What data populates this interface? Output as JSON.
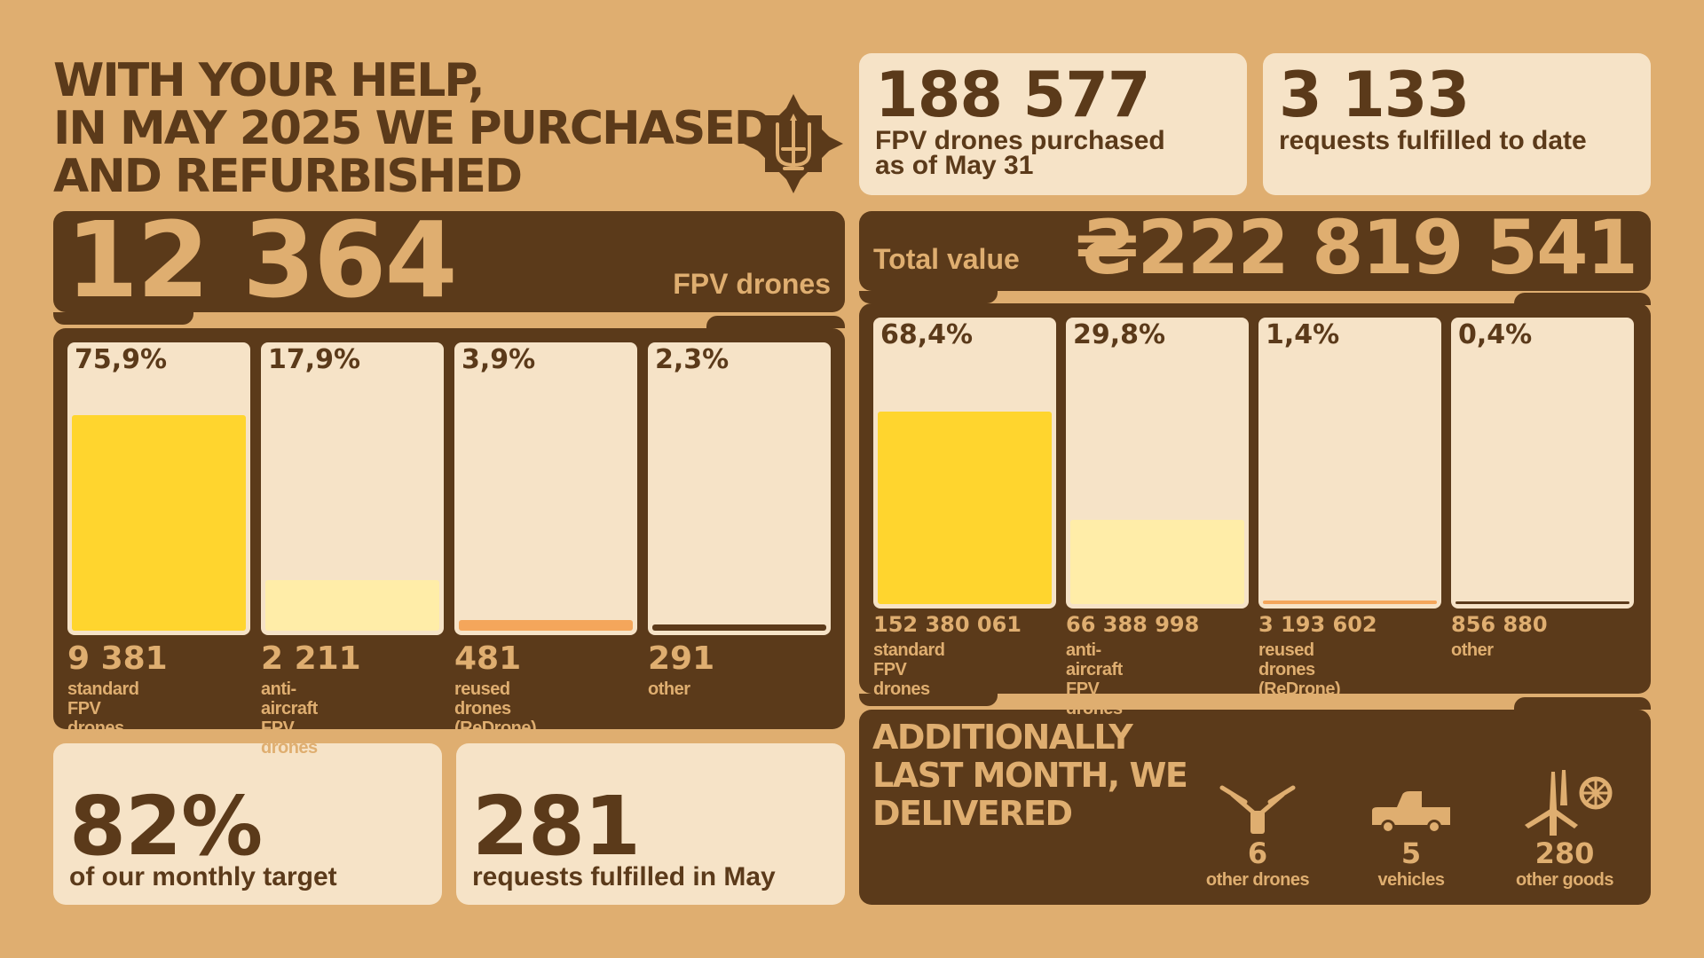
{
  "headline": {
    "line1": "WITH YOUR HELP,",
    "line2": "IN MAY 2025 WE PURCHASED",
    "line3": "AND REFURBISHED"
  },
  "emblem_icon": "tryzub-star-emblem",
  "top_stats": [
    {
      "number": "188 577",
      "label_line1": "FPV drones purchased",
      "label_line2": "as of May 31"
    },
    {
      "number": "3 133",
      "label_line1": "requests fulfilled to date"
    }
  ],
  "drones_banner": {
    "number": "12 364",
    "label": "FPV drones"
  },
  "value_banner": {
    "label": "Total value",
    "number": "₴222 819 541"
  },
  "chart_data": [
    {
      "type": "bar",
      "categories": [
        "standard\nFPV drones",
        "anti-aircraft\nFPV drones",
        "reused drones\n(ReDrone)",
        "other"
      ],
      "percent_labels": [
        "75,9%",
        "17,9%",
        "3,9%",
        "2,3%"
      ],
      "percent_values": [
        75.9,
        17.9,
        3.9,
        2.3
      ],
      "value_labels": [
        "9 381",
        "2 211",
        "481",
        "291"
      ],
      "values": [
        9381,
        2211,
        481,
        291
      ],
      "fill_colors": [
        "#FFD52E",
        "#FFEDA8",
        "#F4A65B",
        "#5B3A1A"
      ],
      "ylim": [
        0,
        100
      ]
    },
    {
      "type": "bar",
      "categories": [
        "standard\nFPV drones",
        "anti-aircraft\nFPV drones",
        "reused drones\n(ReDrone)",
        "other"
      ],
      "percent_labels": [
        "68,4%",
        "29,8%",
        "1,4%",
        "0,4%"
      ],
      "percent_values": [
        68.4,
        29.8,
        1.4,
        0.4
      ],
      "value_labels": [
        "152 380 061",
        "66 388 998",
        "3 193 602",
        "856 880"
      ],
      "values": [
        152380061,
        66388998,
        3193602,
        856880
      ],
      "fill_colors": [
        "#FFD52E",
        "#FFEDA8",
        "#F4A65B",
        "#5B3A1A"
      ],
      "ylim": [
        0,
        100
      ]
    }
  ],
  "bottom_stats": [
    {
      "number": "82%",
      "label": "of our monthly target"
    },
    {
      "number": "281",
      "label": "requests fulfilled in May"
    }
  ],
  "additional": {
    "title_line1": "ADDITIONALLY",
    "title_line2": "LAST MONTH, WE",
    "title_line3": "DELIVERED",
    "items": [
      {
        "icon": "drone-icon",
        "count": "6",
        "label": "other drones"
      },
      {
        "icon": "vehicle-icon",
        "count": "5",
        "label": "vehicles"
      },
      {
        "icon": "goods-icon",
        "count": "280",
        "label": "other goods"
      }
    ]
  },
  "colors": {
    "background": "#DFAE70",
    "dark": "#5B3A1A",
    "cream": "#F6E3C7",
    "yellow": "#FFD52E",
    "light_yellow": "#FFEDA8",
    "orange": "#F4A65B"
  }
}
